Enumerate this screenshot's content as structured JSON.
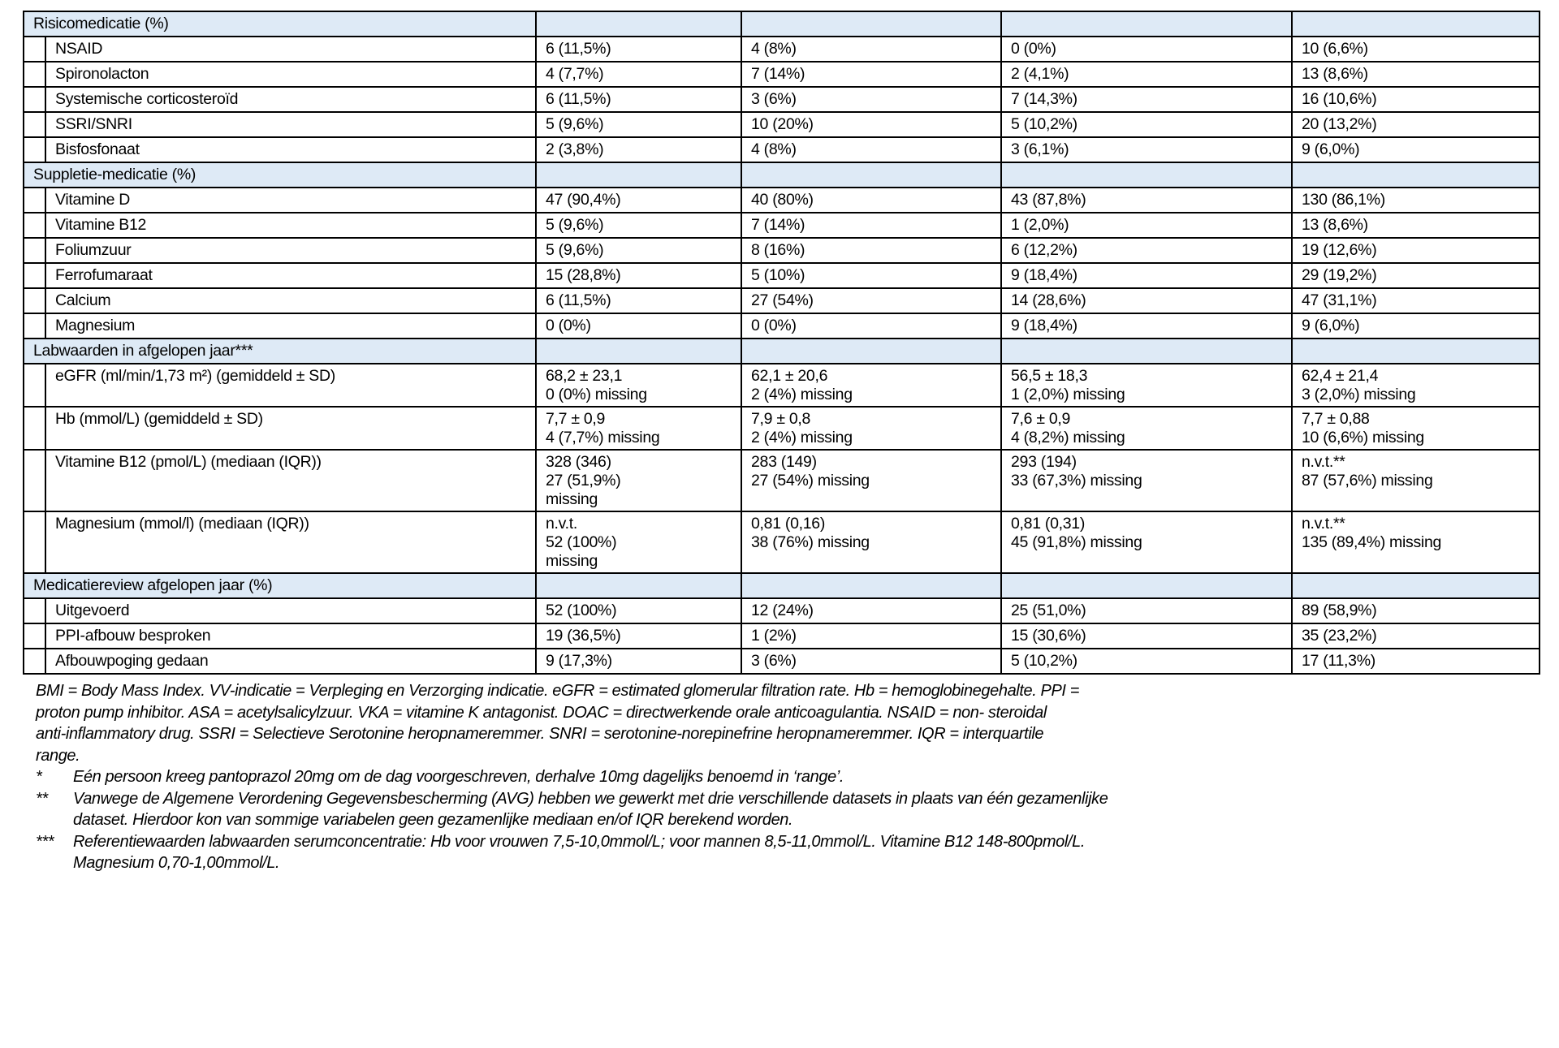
{
  "colors": {
    "section_header_bg": "#deeaf6",
    "border": "#000000",
    "text": "#000000"
  },
  "table": {
    "column_count": 6,
    "sections": [
      {
        "title": "Risicomedicatie (%)",
        "rows": [
          {
            "label": "NSAID",
            "values": [
              [
                "6 (11,5%)"
              ],
              [
                "4 (8%)"
              ],
              [
                "0 (0%)"
              ],
              [
                "10 (6,6%)"
              ]
            ]
          },
          {
            "label": "Spironolacton",
            "values": [
              [
                "4 (7,7%)"
              ],
              [
                "7 (14%)"
              ],
              [
                "2 (4,1%)"
              ],
              [
                "13 (8,6%)"
              ]
            ]
          },
          {
            "label": "Systemische corticosteroïd",
            "values": [
              [
                "6 (11,5%)"
              ],
              [
                "3 (6%)"
              ],
              [
                "7 (14,3%)"
              ],
              [
                "16 (10,6%)"
              ]
            ]
          },
          {
            "label": "SSRI/SNRI",
            "values": [
              [
                "5 (9,6%)"
              ],
              [
                "10 (20%)"
              ],
              [
                "5 (10,2%)"
              ],
              [
                "20 (13,2%)"
              ]
            ]
          },
          {
            "label": "Bisfosfonaat",
            "values": [
              [
                "2 (3,8%)"
              ],
              [
                "4 (8%)"
              ],
              [
                "3 (6,1%)"
              ],
              [
                "9 (6,0%)"
              ]
            ]
          }
        ]
      },
      {
        "title": "Suppletie-medicatie (%)",
        "rows": [
          {
            "label": "Vitamine D",
            "values": [
              [
                "47 (90,4%)"
              ],
              [
                "40 (80%)"
              ],
              [
                "43 (87,8%)"
              ],
              [
                "130 (86,1%)"
              ]
            ]
          },
          {
            "label": "Vitamine B12",
            "values": [
              [
                "5 (9,6%)"
              ],
              [
                "7 (14%)"
              ],
              [
                "1 (2,0%)"
              ],
              [
                "13 (8,6%)"
              ]
            ]
          },
          {
            "label": "Foliumzuur",
            "values": [
              [
                "5 (9,6%)"
              ],
              [
                "8 (16%)"
              ],
              [
                "6 (12,2%)"
              ],
              [
                "19 (12,6%)"
              ]
            ]
          },
          {
            "label": "Ferrofumaraat",
            "values": [
              [
                "15 (28,8%)"
              ],
              [
                "5 (10%)"
              ],
              [
                "9 (18,4%)"
              ],
              [
                "29 (19,2%)"
              ]
            ]
          },
          {
            "label": "Calcium",
            "values": [
              [
                "6 (11,5%)"
              ],
              [
                "27 (54%)"
              ],
              [
                "14 (28,6%)"
              ],
              [
                "47 (31,1%)"
              ]
            ]
          },
          {
            "label": "Magnesium",
            "values": [
              [
                "0 (0%)"
              ],
              [
                "0 (0%)"
              ],
              [
                "9 (18,4%)"
              ],
              [
                "9 (6,0%)"
              ]
            ]
          }
        ]
      },
      {
        "title": "Labwaarden in afgelopen jaar***",
        "rows": [
          {
            "label": "eGFR (ml/min/1,73 m²) (gemiddeld ± SD)",
            "values": [
              [
                "68,2 ± 23,1",
                "0 (0%) missing"
              ],
              [
                "62,1 ± 20,6",
                "2 (4%) missing"
              ],
              [
                "56,5 ± 18,3",
                "1 (2,0%) missing"
              ],
              [
                "62,4 ± 21,4",
                "3 (2,0%) missing"
              ]
            ]
          },
          {
            "label": "Hb (mmol/L) (gemiddeld ± SD)",
            "values": [
              [
                "7,7 ± 0,9",
                "4 (7,7%) missing"
              ],
              [
                "7,9 ± 0,8",
                "2 (4%) missing"
              ],
              [
                "7,6 ± 0,9",
                "4 (8,2%) missing"
              ],
              [
                "7,7 ± 0,88",
                "10 (6,6%) missing"
              ]
            ]
          },
          {
            "label": "Vitamine B12 (pmol/L) (mediaan (IQR))",
            "values": [
              [
                "328 (346)",
                "27 (51,9%)",
                "missing"
              ],
              [
                "283 (149)",
                "27 (54%) missing"
              ],
              [
                "293 (194)",
                "33 (67,3%) missing"
              ],
              [
                "n.v.t.**",
                "87 (57,6%) missing"
              ]
            ]
          },
          {
            "label": "Magnesium (mmol/l) (mediaan (IQR))",
            "values": [
              [
                "n.v.t.",
                "52 (100%)",
                "missing"
              ],
              [
                "0,81 (0,16)",
                "38 (76%) missing"
              ],
              [
                "0,81 (0,31)",
                "45 (91,8%) missing"
              ],
              [
                "n.v.t.**",
                "135 (89,4%) missing"
              ]
            ]
          }
        ]
      },
      {
        "title": "Medicatiereview afgelopen jaar (%)",
        "rows": [
          {
            "label": "Uitgevoerd",
            "values": [
              [
                "52 (100%)"
              ],
              [
                "12 (24%)"
              ],
              [
                "25 (51,0%)"
              ],
              [
                "89 (58,9%)"
              ]
            ]
          },
          {
            "label": "PPI-afbouw besproken",
            "values": [
              [
                "19 (36,5%)"
              ],
              [
                "1 (2%)"
              ],
              [
                "15 (30,6%)"
              ],
              [
                "35 (23,2%)"
              ]
            ]
          },
          {
            "label": "Afbouwpoging gedaan",
            "values": [
              [
                "9 (17,3%)"
              ],
              [
                "3 (6%)"
              ],
              [
                "5 (10,2%)"
              ],
              [
                "17 (11,3%)"
              ]
            ]
          }
        ]
      }
    ]
  },
  "footnotes": {
    "abbrev_lines": [
      "BMI = Body Mass Index. VV-indicatie = Verpleging en Verzorging indicatie. eGFR = estimated glomerular filtration rate. Hb = hemoglobinegehalte. PPI =",
      "proton pump inhibitor. ASA = acetylsalicylzuur. VKA = vitamine K antagonist. DOAC = directwerkende orale anticoagulantia. NSAID = non- steroidal",
      "anti-inflammatory drug.  SSRI = Selectieve Serotonine heropnameremmer. SNRI = serotonine-norepinefrine heropnameremmer.  IQR = interquartile",
      "range."
    ],
    "notes": [
      {
        "marker": "*",
        "lines": [
          "Eén persoon kreeg pantoprazol 20mg om de dag voorgeschreven, derhalve 10mg dagelijks benoemd in ‘range’."
        ]
      },
      {
        "marker": "**",
        "lines": [
          "Vanwege de Algemene Verordening Gegevensbescherming (AVG) hebben we gewerkt met drie verschillende datasets in plaats van één gezamenlijke",
          "dataset. Hierdoor kon van sommige variabelen geen gezamenlijke mediaan en/of IQR berekend worden."
        ]
      },
      {
        "marker": "***",
        "lines": [
          "Referentiewaarden labwaarden serumconcentratie: Hb voor vrouwen 7,5-10,0mmol/L; voor mannen 8,5-11,0mmol/L. Vitamine B12 148-800pmol/L.",
          "Magnesium 0,70-1,00mmol/L."
        ]
      }
    ]
  }
}
